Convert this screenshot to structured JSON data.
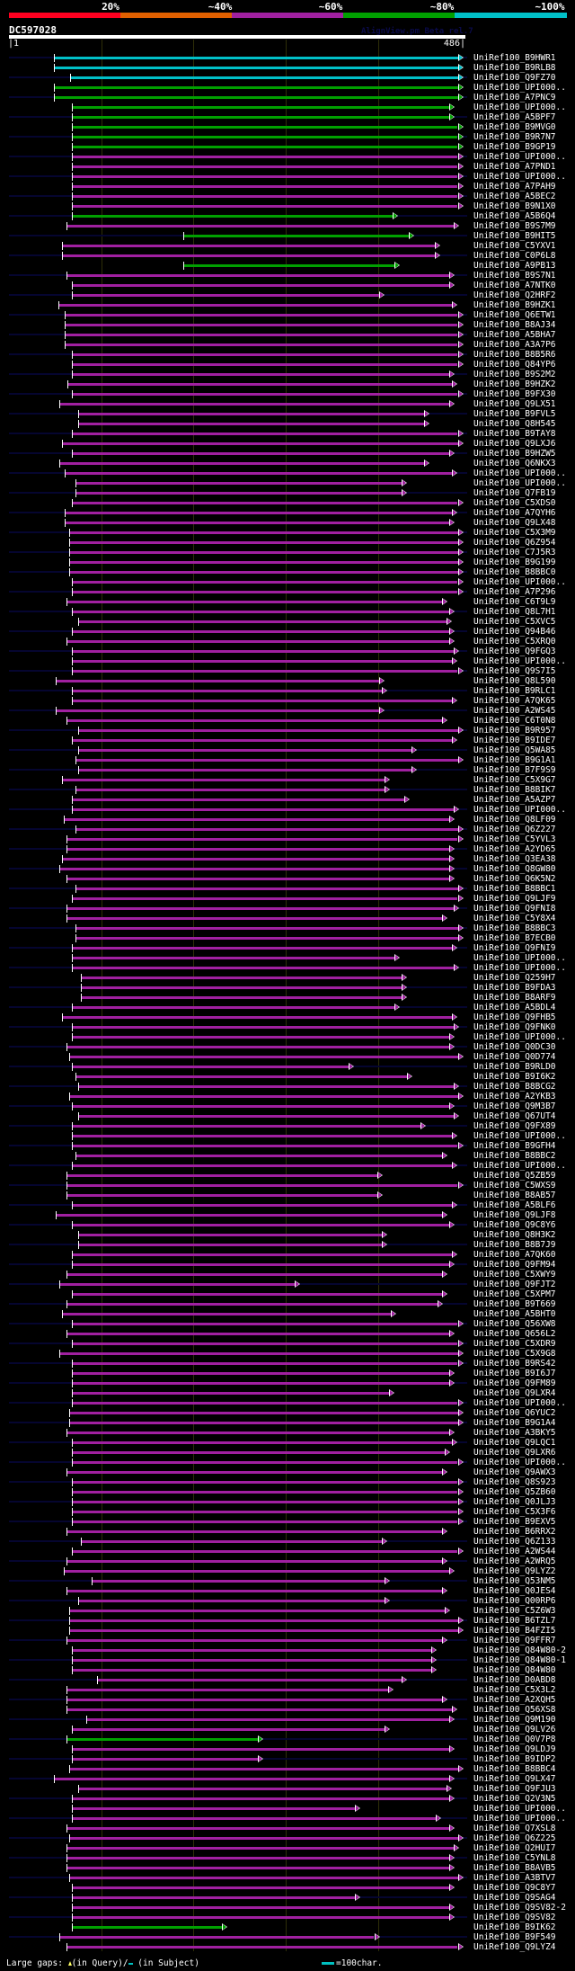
{
  "header": {
    "percent_labels": [
      "20%",
      "~40%",
      "~60%",
      "~80%",
      "~100%"
    ],
    "percent_colors": [
      "#ff0020",
      "#e06000",
      "#a020a0",
      "#00a000",
      "#00c0c8"
    ],
    "title": "DC597028",
    "watermark": "AlignView.pm Beta rel.7",
    "query_start": "|1",
    "query_end": "486|",
    "query_length": 486
  },
  "colors": {
    "c": "#00c0c8",
    "g": "#00a000",
    "m": "#a020a0"
  },
  "rows": [
    [
      "UniRef100_B9HWR1",
      48,
      478,
      "c"
    ],
    [
      "UniRef100_B9RLB8",
      48,
      478,
      "c"
    ],
    [
      "UniRef100_Q9FZ70",
      65,
      478,
      "c"
    ],
    [
      "UniRef100_UPI000..",
      48,
      478,
      "g"
    ],
    [
      "UniRef100_A7PNC9",
      48,
      478,
      "g"
    ],
    [
      "UniRef100_UPI000..",
      67,
      469,
      "g"
    ],
    [
      "UniRef100_A5BPF7",
      67,
      469,
      "g"
    ],
    [
      "UniRef100_B9MVG0",
      67,
      478,
      "g"
    ],
    [
      "UniRef100_B9R7N7",
      67,
      478,
      "g"
    ],
    [
      "UniRef100_B9GP19",
      67,
      478,
      "g"
    ],
    [
      "UniRef100_UPI000..",
      67,
      478,
      "m"
    ],
    [
      "UniRef100_A7PND1",
      67,
      478,
      "m"
    ],
    [
      "UniRef100_UPI000..",
      67,
      478,
      "m"
    ],
    [
      "UniRef100_A7PAH9",
      67,
      478,
      "m"
    ],
    [
      "UniRef100_A5BEC2",
      67,
      478,
      "m"
    ],
    [
      "UniRef100_B9N1X0",
      67,
      478,
      "m"
    ],
    [
      "UniRef100_A5B6Q4",
      67,
      409,
      "g"
    ],
    [
      "UniRef100_B9S7M9",
      61,
      474,
      "m"
    ],
    [
      "UniRef100_B9HIT5",
      186,
      426,
      "g"
    ],
    [
      "UniRef100_C5YXV1",
      56,
      454,
      "m"
    ],
    [
      "UniRef100_C0P6L8",
      56,
      454,
      "m"
    ],
    [
      "UniRef100_A9PB13",
      186,
      411,
      "g"
    ],
    [
      "UniRef100_B9S7N1",
      61,
      469,
      "m"
    ],
    [
      "UniRef100_A7NTK0",
      67,
      469,
      "m"
    ],
    [
      "UniRef100_Q2HRF2",
      67,
      394,
      "m"
    ],
    [
      "UniRef100_B9HZK1",
      53,
      472,
      "m"
    ],
    [
      "UniRef100_Q6ETW1",
      59,
      478,
      "m"
    ],
    [
      "UniRef100_B8AJ34",
      59,
      478,
      "m"
    ],
    [
      "UniRef100_A5BHA7",
      59,
      478,
      "m"
    ],
    [
      "UniRef100_A3A7P6",
      59,
      478,
      "m"
    ],
    [
      "UniRef100_B8B5R6",
      67,
      478,
      "m"
    ],
    [
      "UniRef100_Q84YP6",
      67,
      478,
      "m"
    ],
    [
      "UniRef100_B9S2M2",
      67,
      469,
      "m"
    ],
    [
      "UniRef100_B9HZK2",
      62,
      472,
      "m"
    ],
    [
      "UniRef100_B9FX30",
      67,
      478,
      "m"
    ],
    [
      "UniRef100_Q9LX51",
      54,
      469,
      "m"
    ],
    [
      "UniRef100_B9FVL5",
      74,
      442,
      "m"
    ],
    [
      "UniRef100_Q8H545",
      74,
      442,
      "m"
    ],
    [
      "UniRef100_B9TAY8",
      67,
      478,
      "m"
    ],
    [
      "UniRef100_Q9LXJ6",
      56,
      478,
      "m"
    ],
    [
      "UniRef100_B9HZW5",
      67,
      469,
      "m"
    ],
    [
      "UniRef100_Q6NKX3",
      54,
      442,
      "m"
    ],
    [
      "UniRef100_UPI000..",
      59,
      472,
      "m"
    ],
    [
      "UniRef100_UPI000..",
      71,
      418,
      "m"
    ],
    [
      "UniRef100_Q7FB19",
      71,
      418,
      "m"
    ],
    [
      "UniRef100_C5XDS0",
      67,
      478,
      "m"
    ],
    [
      "UniRef100_A7QYH6",
      59,
      472,
      "m"
    ],
    [
      "UniRef100_Q9LX48",
      59,
      469,
      "m"
    ],
    [
      "UniRef100_C5X3M9",
      64,
      478,
      "m"
    ],
    [
      "UniRef100_Q6Z954",
      64,
      478,
      "m"
    ],
    [
      "UniRef100_C7J5R3",
      64,
      478,
      "m"
    ],
    [
      "UniRef100_B9G199",
      64,
      478,
      "m"
    ],
    [
      "UniRef100_B8BBC0",
      64,
      478,
      "m"
    ],
    [
      "UniRef100_UPI000..",
      67,
      478,
      "m"
    ],
    [
      "UniRef100_A7P296",
      67,
      478,
      "m"
    ],
    [
      "UniRef100_C6T9L9",
      61,
      461,
      "m"
    ],
    [
      "UniRef100_Q8L7H1",
      67,
      469,
      "m"
    ],
    [
      "UniRef100_C5XVC5",
      74,
      466,
      "m"
    ],
    [
      "UniRef100_Q94B46",
      67,
      469,
      "m"
    ],
    [
      "UniRef100_C5XRQ0",
      61,
      469,
      "m"
    ],
    [
      "UniRef100_Q9FGQ3",
      67,
      474,
      "m"
    ],
    [
      "UniRef100_UPI000..",
      67,
      472,
      "m"
    ],
    [
      "UniRef100_Q9S7I5",
      67,
      478,
      "m"
    ],
    [
      "UniRef100_Q8L590",
      50,
      394,
      "m"
    ],
    [
      "UniRef100_B9RLC1",
      67,
      397,
      "m"
    ],
    [
      "UniRef100_A7QK65",
      67,
      472,
      "m"
    ],
    [
      "UniRef100_A2WS45",
      50,
      394,
      "m"
    ],
    [
      "UniRef100_C6T0N8",
      61,
      461,
      "m"
    ],
    [
      "UniRef100_B9R957",
      74,
      478,
      "m"
    ],
    [
      "UniRef100_B9IDE7",
      67,
      472,
      "m"
    ],
    [
      "UniRef100_Q5WA85",
      74,
      429,
      "m"
    ],
    [
      "UniRef100_B9G1A1",
      71,
      478,
      "m"
    ],
    [
      "UniRef100_B7F9S9",
      74,
      429,
      "m"
    ],
    [
      "UniRef100_C5X9G7",
      56,
      400,
      "m"
    ],
    [
      "UniRef100_B8BIK7",
      71,
      400,
      "m"
    ],
    [
      "UniRef100_A5AZP7",
      67,
      421,
      "m"
    ],
    [
      "UniRef100_UPI000..",
      67,
      474,
      "m"
    ],
    [
      "UniRef100_Q8LF09",
      58,
      469,
      "m"
    ],
    [
      "UniRef100_Q6Z227",
      71,
      478,
      "m"
    ],
    [
      "UniRef100_C5YVL3",
      61,
      478,
      "m"
    ],
    [
      "UniRef100_A2YD65",
      61,
      469,
      "m"
    ],
    [
      "UniRef100_Q3EA38",
      56,
      469,
      "m"
    ],
    [
      "UniRef100_Q8GW80",
      54,
      469,
      "m"
    ],
    [
      "UniRef100_Q6K5N2",
      61,
      469,
      "m"
    ],
    [
      "UniRef100_B8BBC1",
      71,
      478,
      "m"
    ],
    [
      "UniRef100_Q9LJF9",
      67,
      478,
      "m"
    ],
    [
      "UniRef100_Q9FNI8",
      61,
      474,
      "m"
    ],
    [
      "UniRef100_C5Y8X4",
      61,
      461,
      "m"
    ],
    [
      "UniRef100_B8BBC3",
      71,
      478,
      "m"
    ],
    [
      "UniRef100_B7ECB0",
      71,
      478,
      "m"
    ],
    [
      "UniRef100_Q9FNI9",
      67,
      472,
      "m"
    ],
    [
      "UniRef100_UPI000..",
      67,
      411,
      "m"
    ],
    [
      "UniRef100_UPI000..",
      67,
      474,
      "m"
    ],
    [
      "UniRef100_Q259H7",
      77,
      418,
      "m"
    ],
    [
      "UniRef100_B9FDA3",
      77,
      418,
      "m"
    ],
    [
      "UniRef100_B8ARF9",
      77,
      418,
      "m"
    ],
    [
      "UniRef100_A5BDL4",
      67,
      411,
      "m"
    ],
    [
      "UniRef100_Q9FHB5",
      56,
      472,
      "m"
    ],
    [
      "UniRef100_Q9FNK0",
      67,
      474,
      "m"
    ],
    [
      "UniRef100_UPI000..",
      67,
      469,
      "m"
    ],
    [
      "UniRef100_Q0DC30",
      61,
      469,
      "m"
    ],
    [
      "UniRef100_Q0D774",
      64,
      478,
      "m"
    ],
    [
      "UniRef100_B9RLD0",
      67,
      362,
      "m"
    ],
    [
      "UniRef100_B9I6K2",
      71,
      424,
      "m"
    ],
    [
      "UniRef100_B8BCG2",
      74,
      474,
      "m"
    ],
    [
      "UniRef100_A2YKB3",
      64,
      478,
      "m"
    ],
    [
      "UniRef100_Q9M3B7",
      67,
      469,
      "m"
    ],
    [
      "UniRef100_Q67UT4",
      74,
      474,
      "m"
    ],
    [
      "UniRef100_Q9FX89",
      67,
      438,
      "m"
    ],
    [
      "UniRef100_UPI000..",
      67,
      472,
      "m"
    ],
    [
      "UniRef100_B9GFH4",
      67,
      478,
      "m"
    ],
    [
      "UniRef100_B8BBC2",
      71,
      461,
      "m"
    ],
    [
      "UniRef100_UPI000..",
      67,
      472,
      "m"
    ],
    [
      "UniRef100_Q5ZB59",
      61,
      392,
      "m"
    ],
    [
      "UniRef100_C5WXS9",
      61,
      478,
      "m"
    ],
    [
      "UniRef100_B8AB57",
      61,
      392,
      "m"
    ],
    [
      "UniRef100_A5BLF6",
      67,
      472,
      "m"
    ],
    [
      "UniRef100_Q9LJF8",
      50,
      461,
      "m"
    ],
    [
      "UniRef100_Q9C8Y6",
      67,
      469,
      "m"
    ],
    [
      "UniRef100_Q8H3K2",
      74,
      397,
      "m"
    ],
    [
      "UniRef100_B8B7J9",
      74,
      397,
      "m"
    ],
    [
      "UniRef100_A7QK60",
      67,
      472,
      "m"
    ],
    [
      "UniRef100_Q9FM94",
      67,
      469,
      "m"
    ],
    [
      "UniRef100_C5XWY9",
      61,
      461,
      "m"
    ],
    [
      "UniRef100_Q9FJT2",
      54,
      304,
      "m"
    ],
    [
      "UniRef100_C5XPM7",
      67,
      461,
      "m"
    ],
    [
      "UniRef100_B9T669",
      61,
      456,
      "m"
    ],
    [
      "UniRef100_A5BHT0",
      56,
      407,
      "m"
    ],
    [
      "UniRef100_Q56XW8",
      67,
      478,
      "m"
    ],
    [
      "UniRef100_Q656L2",
      61,
      469,
      "m"
    ],
    [
      "UniRef100_C5XDR9",
      67,
      478,
      "m"
    ],
    [
      "UniRef100_C5X9G8",
      54,
      478,
      "m"
    ],
    [
      "UniRef100_B9RS42",
      67,
      478,
      "m"
    ],
    [
      "UniRef100_B9I6J7",
      67,
      469,
      "m"
    ],
    [
      "UniRef100_Q9FM89",
      67,
      469,
      "m"
    ],
    [
      "UniRef100_Q9LXR4",
      67,
      405,
      "m"
    ],
    [
      "UniRef100_UPI000..",
      67,
      478,
      "m"
    ],
    [
      "UniRef100_Q6YUC2",
      64,
      478,
      "m"
    ],
    [
      "UniRef100_B9G1A4",
      64,
      478,
      "m"
    ],
    [
      "UniRef100_A3BKY5",
      61,
      469,
      "m"
    ],
    [
      "UniRef100_Q9LQC1",
      67,
      472,
      "m"
    ],
    [
      "UniRef100_Q9LXR6",
      67,
      464,
      "m"
    ],
    [
      "UniRef100_UPI000..",
      67,
      478,
      "m"
    ],
    [
      "UniRef100_Q9AWX3",
      61,
      461,
      "m"
    ],
    [
      "UniRef100_Q8S923",
      67,
      478,
      "m"
    ],
    [
      "UniRef100_Q5ZB60",
      67,
      478,
      "m"
    ],
    [
      "UniRef100_Q0JLJ3",
      67,
      478,
      "m"
    ],
    [
      "UniRef100_C5X3F6",
      67,
      478,
      "m"
    ],
    [
      "UniRef100_B9EXV5",
      67,
      478,
      "m"
    ],
    [
      "UniRef100_B6RRX2",
      61,
      461,
      "m"
    ],
    [
      "UniRef100_Q6Z133",
      77,
      397,
      "m"
    ],
    [
      "UniRef100_A2WS44",
      67,
      478,
      "m"
    ],
    [
      "UniRef100_A2WRQ5",
      61,
      461,
      "m"
    ],
    [
      "UniRef100_Q9LYZ2",
      58,
      469,
      "m"
    ],
    [
      "UniRef100_Q53NM5",
      88,
      400,
      "m"
    ],
    [
      "UniRef100_Q0JES4",
      61,
      461,
      "m"
    ],
    [
      "UniRef100_Q00RP6",
      74,
      400,
      "m"
    ],
    [
      "UniRef100_C5Z6W3",
      64,
      464,
      "m"
    ],
    [
      "UniRef100_B6TZL7",
      64,
      478,
      "m"
    ],
    [
      "UniRef100_B4FZI5",
      64,
      478,
      "m"
    ],
    [
      "UniRef100_Q9FFR7",
      61,
      461,
      "m"
    ],
    [
      "UniRef100_Q84W80-2",
      67,
      450,
      "m"
    ],
    [
      "UniRef100_Q84W80-1",
      67,
      450,
      "m"
    ],
    [
      "UniRef100_Q84W80",
      67,
      450,
      "m"
    ],
    [
      "UniRef100_D0ABD8",
      94,
      418,
      "m"
    ],
    [
      "UniRef100_C5X3L2",
      61,
      404,
      "m"
    ],
    [
      "UniRef100_A2XQH5",
      61,
      461,
      "m"
    ],
    [
      "UniRef100_Q56XS8",
      61,
      472,
      "m"
    ],
    [
      "UniRef100_Q9M190",
      82,
      469,
      "m"
    ],
    [
      "UniRef100_Q9LV26",
      67,
      400,
      "m"
    ],
    [
      "UniRef100_Q0V7P8",
      61,
      265,
      "g"
    ],
    [
      "UniRef100_Q9LDJ9",
      67,
      469,
      "m"
    ],
    [
      "UniRef100_B9IDP2",
      67,
      265,
      "m"
    ],
    [
      "UniRef100_B8BBC4",
      64,
      478,
      "m"
    ],
    [
      "UniRef100_Q9LX47",
      48,
      469,
      "m"
    ],
    [
      "UniRef100_Q9FJU3",
      74,
      466,
      "m"
    ],
    [
      "UniRef100_Q2V3N5",
      67,
      469,
      "m"
    ],
    [
      "UniRef100_UPI000..",
      67,
      368,
      "m"
    ],
    [
      "UniRef100_UPI000..",
      67,
      455,
      "m"
    ],
    [
      "UniRef100_Q7XSL8",
      61,
      469,
      "m"
    ],
    [
      "UniRef100_Q6Z225",
      64,
      478,
      "m"
    ],
    [
      "UniRef100_Q2HUI7",
      61,
      474,
      "m"
    ],
    [
      "UniRef100_C5YNL8",
      61,
      469,
      "m"
    ],
    [
      "UniRef100_B8AVB5",
      61,
      469,
      "m"
    ],
    [
      "UniRef100_A3BTV7",
      64,
      478,
      "m"
    ],
    [
      "UniRef100_Q9C8Y7",
      67,
      469,
      "m"
    ],
    [
      "UniRef100_Q9SAG4",
      67,
      368,
      "m"
    ],
    [
      "UniRef100_Q9SV82-2",
      67,
      469,
      "m"
    ],
    [
      "UniRef100_Q9SV82",
      67,
      469,
      "m"
    ],
    [
      "UniRef100_B9IK62",
      67,
      227,
      "g"
    ],
    [
      "UniRef100_B9F549",
      54,
      389,
      "m"
    ],
    [
      "UniRef100_Q9LYZ4",
      61,
      478,
      "m"
    ]
  ],
  "footer": {
    "gaps_label": "Large gaps:",
    "query_gap": "(in Query)/",
    "subject_gap": " (in Subject)",
    "scale_label": "=100char."
  }
}
